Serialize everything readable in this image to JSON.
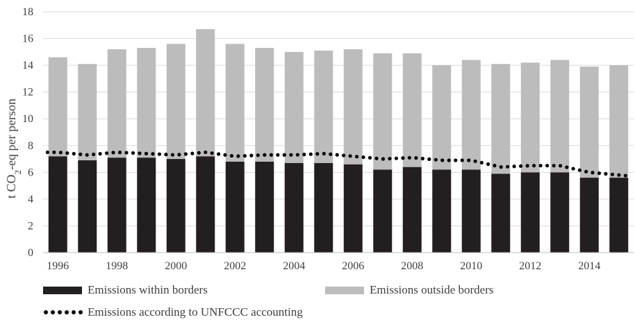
{
  "chart_data": {
    "type": "bar",
    "stacked": true,
    "x": [
      1996,
      1997,
      1998,
      1999,
      2000,
      2001,
      2002,
      2003,
      2004,
      2005,
      2006,
      2007,
      2008,
      2009,
      2010,
      2011,
      2012,
      2013,
      2014,
      2015
    ],
    "x_tick_labels": [
      "1996",
      "1998",
      "2000",
      "2002",
      "2004",
      "2006",
      "2008",
      "2010",
      "2012",
      "2014"
    ],
    "ylabel_main": "t CO",
    "ylabel_sub": "2",
    "ylabel_rest": "-eq per person",
    "ylim": [
      0,
      18
    ],
    "y_ticks": [
      0,
      2,
      4,
      6,
      8,
      10,
      12,
      14,
      16,
      18
    ],
    "grid": "horizontal",
    "series": [
      {
        "name": "Emissions within borders",
        "type": "bar",
        "color": "#231f20",
        "values": [
          7.2,
          6.9,
          7.1,
          7.1,
          7.0,
          7.2,
          6.8,
          6.8,
          6.7,
          6.7,
          6.6,
          6.2,
          6.4,
          6.2,
          6.2,
          5.9,
          6.0,
          6.0,
          5.6,
          5.6
        ]
      },
      {
        "name": "Emissions outside borders",
        "type": "bar",
        "color": "#bcbcbc",
        "values": [
          7.4,
          7.2,
          8.1,
          8.2,
          8.6,
          9.5,
          8.8,
          8.5,
          8.3,
          8.4,
          8.6,
          8.7,
          8.5,
          7.8,
          8.2,
          8.2,
          8.2,
          8.4,
          8.3,
          8.4
        ]
      },
      {
        "name": "Emissions according to UNFCCC accounting",
        "type": "line",
        "style": "dotted",
        "color": "#000000",
        "values": [
          7.5,
          7.3,
          7.5,
          7.4,
          7.3,
          7.5,
          7.2,
          7.3,
          7.3,
          7.4,
          7.2,
          7.0,
          7.1,
          6.9,
          6.9,
          6.4,
          6.5,
          6.5,
          6.0,
          5.8
        ]
      }
    ],
    "legend": "bottom"
  }
}
